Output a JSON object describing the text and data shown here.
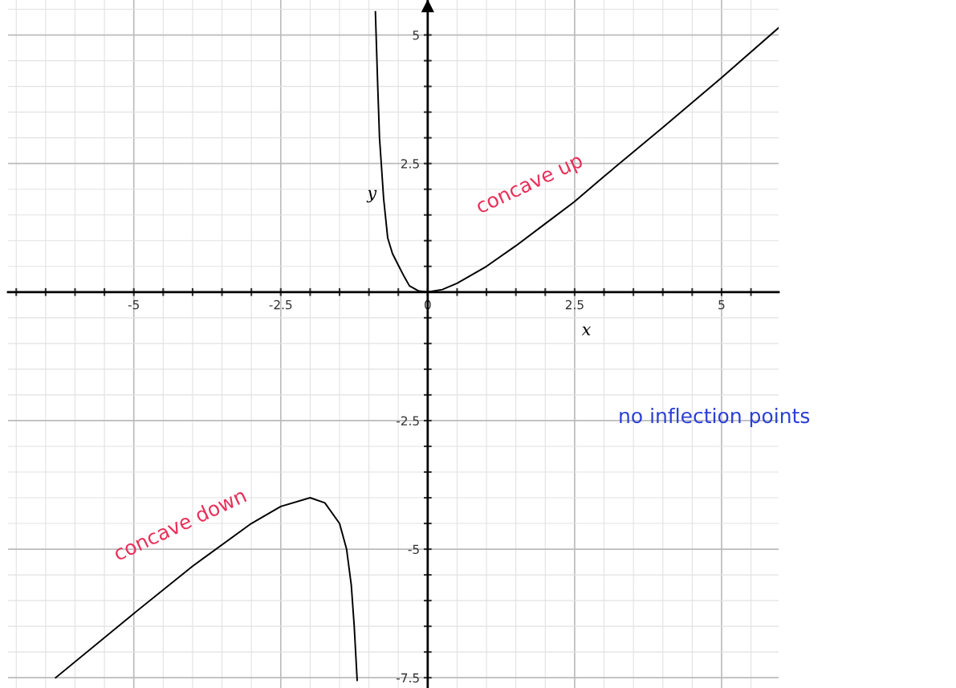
{
  "chart_data": {
    "type": "line",
    "xlabel": "x",
    "ylabel": "y",
    "xlim": [
      -7.14,
      5.97
    ],
    "ylim": [
      -7.7,
      5.68
    ],
    "xticks": [
      {
        "value": -7,
        "label": null
      },
      {
        "value": -6.5,
        "label": null
      },
      {
        "value": -6,
        "label": null
      },
      {
        "value": -5.5,
        "label": null
      },
      -5,
      {
        "value": -4.5,
        "label": null
      },
      {
        "value": -4,
        "label": null
      },
      {
        "value": -3.5,
        "label": null
      },
      {
        "value": -3,
        "label": null
      },
      -2.5,
      {
        "value": -2,
        "label": null
      },
      {
        "value": -1.5,
        "label": null
      },
      {
        "value": -1,
        "label": null
      },
      {
        "value": -0.5,
        "label": null
      },
      0,
      {
        "value": 0.5,
        "label": null
      },
      {
        "value": 1,
        "label": null
      },
      {
        "value": 1.5,
        "label": null
      },
      {
        "value": 2,
        "label": null
      },
      2.5,
      {
        "value": 3,
        "label": null
      },
      {
        "value": 3.5,
        "label": null
      },
      {
        "value": 4,
        "label": null
      },
      {
        "value": 4.5,
        "label": null
      },
      5,
      {
        "value": 5.5,
        "label": null
      }
    ],
    "yticks": [
      -7.5,
      {
        "value": -7,
        "label": null
      },
      {
        "value": -6.5,
        "label": null
      },
      {
        "value": -6,
        "label": null
      },
      {
        "value": -5.5,
        "label": null
      },
      -5,
      {
        "value": -4.5,
        "label": null
      },
      {
        "value": -4,
        "label": null
      },
      {
        "value": -3.5,
        "label": null
      },
      {
        "value": -3,
        "label": null
      },
      -2.5,
      {
        "value": -2,
        "label": null
      },
      {
        "value": -1.5,
        "label": null
      },
      {
        "value": -1,
        "label": null
      },
      {
        "value": -0.5,
        "label": null
      },
      {
        "value": 0.5,
        "label": null
      },
      {
        "value": 1,
        "label": null
      },
      {
        "value": 1.5,
        "label": null
      },
      {
        "value": 2,
        "label": null
      },
      2.5,
      {
        "value": 3,
        "label": null
      },
      {
        "value": 3.5,
        "label": null
      },
      {
        "value": 4,
        "label": null
      },
      {
        "value": 4.5,
        "label": null
      },
      5,
      {
        "value": 5.5,
        "label": null
      }
    ],
    "grid": true,
    "marker": "none",
    "line_style": "solid",
    "series": [
      {
        "color": "#000000",
        "x": [
          -0.89,
          -0.85,
          -0.82,
          -0.79,
          -0.75,
          -0.68,
          -0.6,
          -0.49,
          -0.4,
          -0.31,
          -0.15,
          0,
          0.25,
          0.5,
          1,
          1.5,
          2,
          2.5,
          3,
          4,
          5,
          5.97
        ],
        "values": [
          5.45,
          4.0,
          3.0,
          2.5,
          1.82,
          1.05,
          0.75,
          0.5,
          0.3,
          0.12,
          0.02,
          0,
          0.05,
          0.17,
          0.5,
          0.9,
          1.33,
          1.76,
          2.25,
          3.2,
          4.17,
          5.14
        ]
      },
      {
        "color": "#000000",
        "x": [
          -6.33,
          -5,
          -4,
          -3,
          -2.5,
          -2,
          -1.75,
          -1.5,
          -1.38,
          -1.3,
          -1.25,
          -1.2
        ],
        "values": [
          -7.5,
          -6.25,
          -5.33,
          -4.5,
          -4.17,
          -4.0,
          -4.1,
          -4.5,
          -5.0,
          -5.7,
          -6.5,
          -7.55
        ]
      }
    ],
    "annotations": [
      "concave up",
      "concave down",
      "no inflection points"
    ]
  }
}
